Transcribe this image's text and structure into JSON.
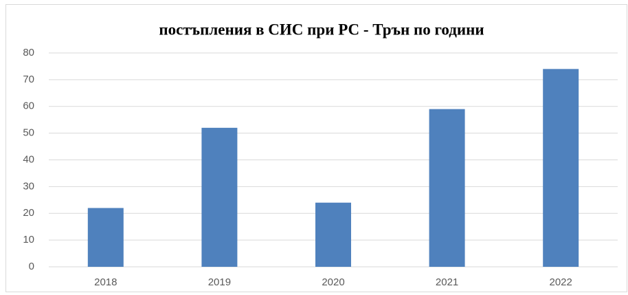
{
  "chart_data": {
    "type": "bar",
    "title": "постъпления  в СИС  при РС - Трън по години",
    "categories": [
      "2018",
      "2019",
      "2020",
      "2021",
      "2022"
    ],
    "values": [
      22,
      52,
      24,
      59,
      74
    ],
    "color": "#4f81bd",
    "ylim": [
      0,
      80
    ],
    "yticks": [
      0,
      10,
      20,
      30,
      40,
      50,
      60,
      70,
      80
    ],
    "grid": true
  }
}
